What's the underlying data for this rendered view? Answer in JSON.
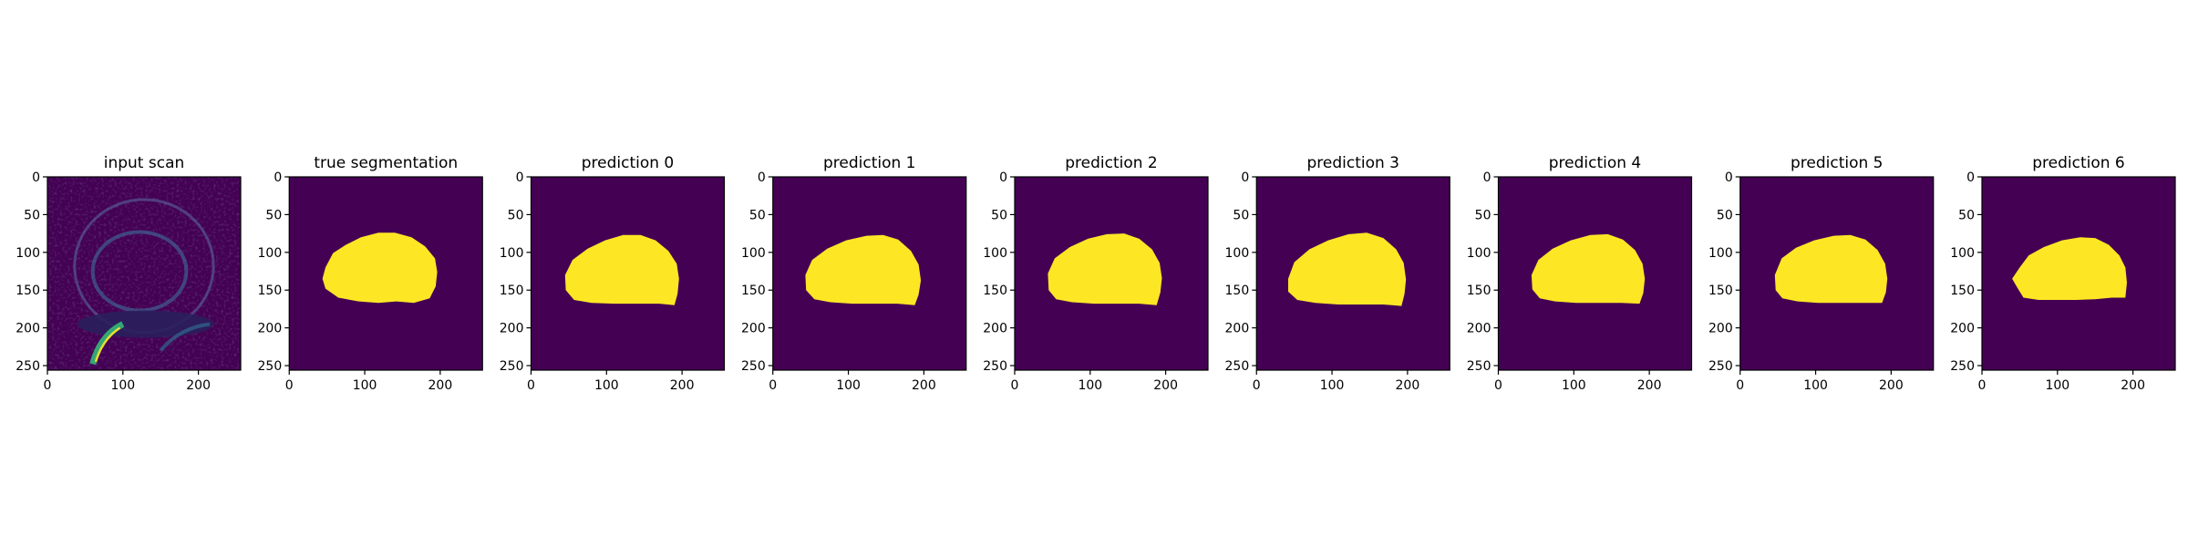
{
  "chart_data": {
    "type": "image-grid",
    "image_size": [
      256,
      256
    ],
    "xticks": [
      0,
      100,
      200
    ],
    "yticks": [
      0,
      50,
      100,
      150,
      200,
      250
    ],
    "xlim": [
      0,
      256
    ],
    "ylim": [
      256,
      0
    ],
    "colormap": "viridis",
    "colors": {
      "mask_background": "#440154",
      "mask_foreground": "#fde725"
    },
    "panels": [
      {
        "title": "input scan",
        "kind": "scan"
      },
      {
        "title": "true segmentation",
        "kind": "mask",
        "outline": [
          [
            48,
            120
          ],
          [
            58,
            101
          ],
          [
            75,
            90
          ],
          [
            95,
            80
          ],
          [
            118,
            74
          ],
          [
            140,
            74
          ],
          [
            162,
            80
          ],
          [
            180,
            92
          ],
          [
            193,
            108
          ],
          [
            196,
            126
          ],
          [
            194,
            145
          ],
          [
            186,
            161
          ],
          [
            165,
            167
          ],
          [
            142,
            165
          ],
          [
            118,
            167
          ],
          [
            92,
            165
          ],
          [
            65,
            160
          ],
          [
            48,
            148
          ],
          [
            44,
            135
          ]
        ]
      },
      {
        "title": "prediction 0",
        "kind": "mask",
        "outline": [
          [
            45,
            130
          ],
          [
            55,
            110
          ],
          [
            75,
            95
          ],
          [
            98,
            84
          ],
          [
            122,
            77
          ],
          [
            145,
            77
          ],
          [
            165,
            84
          ],
          [
            182,
            98
          ],
          [
            193,
            115
          ],
          [
            196,
            135
          ],
          [
            194,
            155
          ],
          [
            190,
            170
          ],
          [
            170,
            168
          ],
          [
            140,
            168
          ],
          [
            110,
            168
          ],
          [
            80,
            167
          ],
          [
            57,
            163
          ],
          [
            46,
            150
          ]
        ]
      },
      {
        "title": "prediction 1",
        "kind": "mask",
        "outline": [
          [
            43,
            130
          ],
          [
            52,
            110
          ],
          [
            72,
            95
          ],
          [
            97,
            84
          ],
          [
            124,
            78
          ],
          [
            146,
            77
          ],
          [
            166,
            83
          ],
          [
            183,
            98
          ],
          [
            193,
            116
          ],
          [
            196,
            137
          ],
          [
            193,
            156
          ],
          [
            188,
            170
          ],
          [
            165,
            168
          ],
          [
            135,
            168
          ],
          [
            105,
            168
          ],
          [
            76,
            166
          ],
          [
            55,
            162
          ],
          [
            44,
            150
          ]
        ]
      },
      {
        "title": "prediction 2",
        "kind": "mask",
        "outline": [
          [
            44,
            128
          ],
          [
            53,
            108
          ],
          [
            73,
            93
          ],
          [
            97,
            82
          ],
          [
            122,
            76
          ],
          [
            145,
            75
          ],
          [
            165,
            82
          ],
          [
            182,
            96
          ],
          [
            192,
            114
          ],
          [
            195,
            134
          ],
          [
            193,
            153
          ],
          [
            188,
            170
          ],
          [
            165,
            168
          ],
          [
            135,
            168
          ],
          [
            105,
            168
          ],
          [
            76,
            166
          ],
          [
            55,
            162
          ],
          [
            45,
            150
          ]
        ]
      },
      {
        "title": "prediction 3",
        "kind": "mask",
        "outline": [
          [
            42,
            135
          ],
          [
            50,
            113
          ],
          [
            70,
            96
          ],
          [
            95,
            84
          ],
          [
            122,
            76
          ],
          [
            146,
            74
          ],
          [
            168,
            81
          ],
          [
            185,
            96
          ],
          [
            195,
            114
          ],
          [
            198,
            136
          ],
          [
            196,
            155
          ],
          [
            192,
            171
          ],
          [
            168,
            169
          ],
          [
            138,
            169
          ],
          [
            108,
            169
          ],
          [
            78,
            167
          ],
          [
            54,
            163
          ],
          [
            42,
            152
          ]
        ]
      },
      {
        "title": "prediction 4",
        "kind": "mask",
        "outline": [
          [
            44,
            130
          ],
          [
            53,
            110
          ],
          [
            72,
            95
          ],
          [
            96,
            84
          ],
          [
            122,
            77
          ],
          [
            145,
            76
          ],
          [
            165,
            83
          ],
          [
            181,
            97
          ],
          [
            191,
            115
          ],
          [
            194,
            135
          ],
          [
            192,
            154
          ],
          [
            187,
            168
          ],
          [
            163,
            167
          ],
          [
            133,
            167
          ],
          [
            103,
            167
          ],
          [
            75,
            165
          ],
          [
            55,
            161
          ],
          [
            45,
            149
          ]
        ]
      },
      {
        "title": "prediction 5",
        "kind": "mask",
        "outline": [
          [
            46,
            130
          ],
          [
            55,
            108
          ],
          [
            74,
            94
          ],
          [
            98,
            84
          ],
          [
            124,
            78
          ],
          [
            146,
            77
          ],
          [
            166,
            83
          ],
          [
            182,
            97
          ],
          [
            192,
            115
          ],
          [
            195,
            135
          ],
          [
            193,
            153
          ],
          [
            188,
            167
          ],
          [
            163,
            167
          ],
          [
            133,
            167
          ],
          [
            103,
            167
          ],
          [
            76,
            165
          ],
          [
            56,
            161
          ],
          [
            47,
            150
          ]
        ]
      },
      {
        "title": "prediction 6",
        "kind": "mask",
        "outline": [
          [
            40,
            135
          ],
          [
            50,
            120
          ],
          [
            62,
            104
          ],
          [
            82,
            93
          ],
          [
            106,
            84
          ],
          [
            130,
            80
          ],
          [
            150,
            81
          ],
          [
            168,
            90
          ],
          [
            182,
            104
          ],
          [
            190,
            120
          ],
          [
            192,
            140
          ],
          [
            190,
            160
          ],
          [
            172,
            160
          ],
          [
            150,
            162
          ],
          [
            125,
            163
          ],
          [
            100,
            163
          ],
          [
            75,
            163
          ],
          [
            55,
            160
          ],
          [
            47,
            147
          ]
        ]
      }
    ]
  }
}
